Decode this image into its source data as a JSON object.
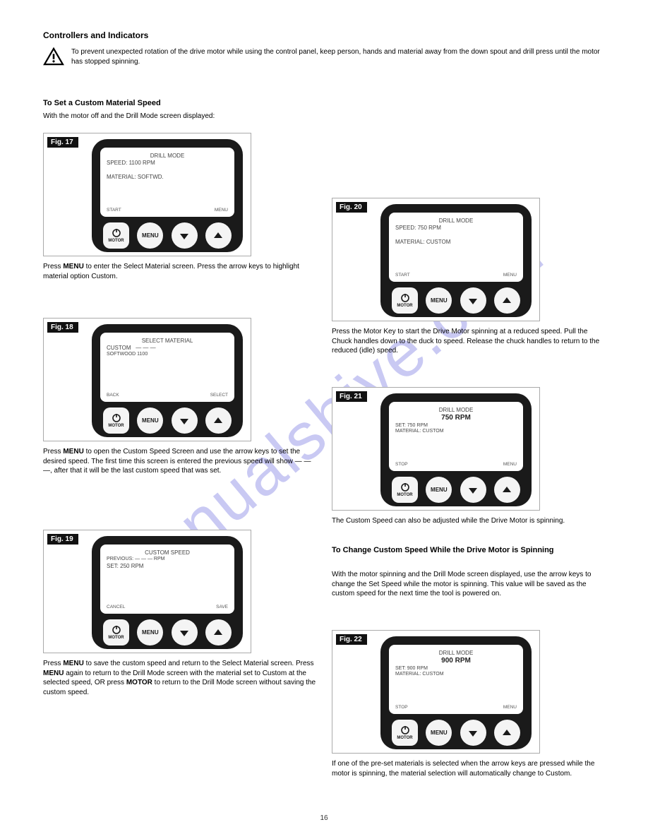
{
  "watermark": "manualshive.com",
  "header": "Controllers and Indicators",
  "warning": "To prevent unexpected rotation of the drive motor while using the control panel, keep person, hands and material away from the down spout and drill press until the motor has stopped spinning.",
  "section_title": "To Set a Custom Material Speed",
  "intro": "With the motor off and the Drill Mode screen displayed:",
  "panels": {
    "fig17": {
      "tag": "Fig. 17",
      "lcd": {
        "l1": "DRILL MODE",
        "l2": "SPEED: 1100 RPM",
        "l4": "MATERIAL: SOFTWD."
      },
      "footer_left": "START",
      "footer_right": "MENU"
    },
    "fig18": {
      "tag": "Fig. 18",
      "lcd": {
        "l1": "SELECT MATERIAL",
        "l2_html": "CUSTOM&nbsp;&nbsp;&nbsp;— — —",
        "l3": "SOFTWOOD  1100"
      },
      "footer_left": "BACK",
      "footer_right": "SELECT"
    },
    "fig19": {
      "tag": "Fig. 19",
      "lcd": {
        "l1": "CUSTOM SPEED",
        "l2": "PREVIOUS: — — — RPM",
        "l3": "SET: 250 RPM"
      },
      "footer_left": "CANCEL",
      "footer_right": "SAVE"
    },
    "fig20": {
      "tag": "Fig. 20",
      "lcd": {
        "l1": "DRILL MODE",
        "l2": "SPEED: 750 RPM",
        "l4": "MATERIAL: CUSTOM"
      },
      "footer_left": "START",
      "footer_right": "MENU"
    },
    "fig21": {
      "tag": "Fig. 21",
      "lcd": {
        "l1": "DRILL MODE",
        "l2_big": "750 RPM",
        "l3": "SET: 750 RPM",
        "l4": "MATERIAL: CUSTOM"
      },
      "footer_left": "STOP",
      "footer_right": "MENU"
    },
    "fig22": {
      "tag": "Fig. 22",
      "lcd": {
        "l1": "DRILL MODE",
        "l2_big": "900 RPM",
        "l3": "SET: 900 RPM",
        "l4": "MATERIAL: CUSTOM"
      },
      "footer_left": "STOP",
      "footer_right": "MENU"
    }
  },
  "btn": {
    "motor": "MOTOR",
    "menu": "MENU"
  },
  "captions": {
    "c17": "Press <b>MENU</b> to enter the Select Material screen. Press the arrow keys to highlight material option Custom.",
    "c18": "Press <b>MENU</b> to open the Custom Speed Screen and use the arrow keys to set the desired speed. The first time this screen is entered the previous speed will show — — —, after that it will be the last custom speed that was set.",
    "c19": "Press <b>MENU</b> to save the custom speed and return to the Select Material screen. Press <b>MENU</b> again to return to the Drill Mode screen with the material set to Custom at the selected speed, OR press <b>MOTOR</b> to return to the Drill Mode screen without saving the custom speed.",
    "c20": "Press the Motor Key to start the Drive Motor spinning at a reduced speed. Pull the Chuck handles down to the duck to speed. Release the chuck handles to return to the reduced (idle) speed.",
    "c21a": "The Custom Speed can also be adjusted while the Drive Motor is spinning.",
    "c21b_title": "To Change Custom Speed While the Drive Motor is Spinning",
    "c21c": "With the motor spinning and the Drill Mode screen displayed, use the arrow keys to change the Set Speed while the motor is spinning. This value will be saved as the custom speed for the next time the tool is powered on.",
    "c22": "If one of the pre-set materials is selected when the arrow keys are pressed while the motor is spinning, the material selection will automatically change to Custom."
  },
  "footnote": "16"
}
